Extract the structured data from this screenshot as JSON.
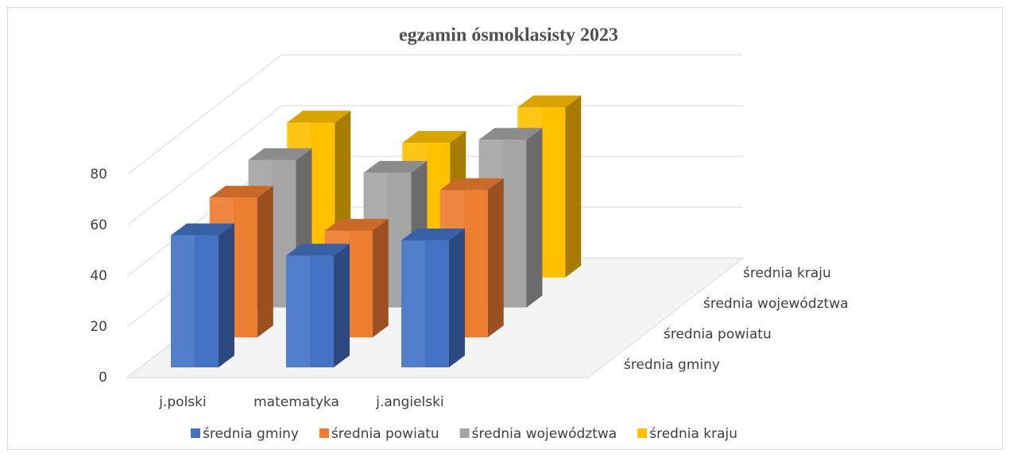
{
  "chart_data": {
    "type": "bar3d",
    "title": "egzamin ósmoklasisty 2023",
    "categories": [
      "j.polski",
      "matematyka",
      "j.angielski"
    ],
    "series": [
      {
        "name": "średnia gminy",
        "color": "#4472c4",
        "values": [
          52,
          44,
          50
        ]
      },
      {
        "name": "średnia powiatu",
        "color": "#ed7d31",
        "values": [
          55,
          42,
          58
        ]
      },
      {
        "name": "średnia województwa",
        "color": "#a5a5a5",
        "values": [
          58,
          53,
          66
        ]
      },
      {
        "name": "średnia kraju",
        "color": "#ffc000",
        "values": [
          61,
          53,
          67
        ]
      }
    ],
    "ylim": [
      0,
      80
    ],
    "yticks": [
      0,
      20,
      40,
      60,
      80
    ],
    "grid": true,
    "legend": "bottom"
  }
}
